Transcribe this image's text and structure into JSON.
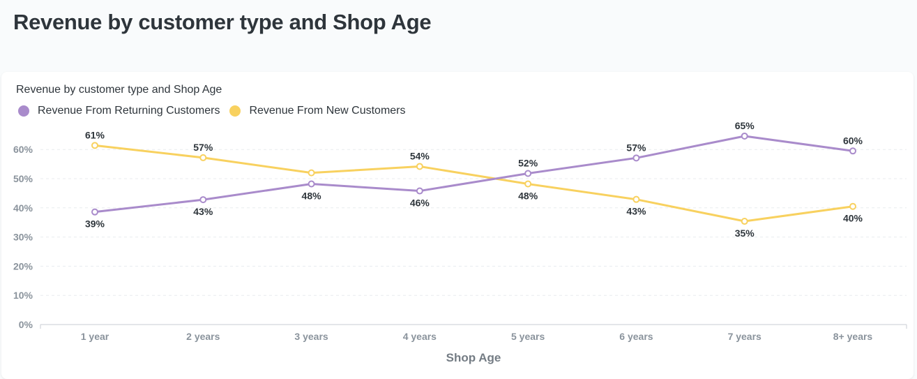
{
  "page": {
    "title": "Revenue by customer type and Shop Age"
  },
  "card": {
    "title": "Revenue by customer type and Shop Age"
  },
  "colors": {
    "returning": "#a98bcb",
    "new": "#f8d15f",
    "grid": "#e8ebee",
    "axis": "#c9ced3"
  },
  "chart_data": {
    "type": "line",
    "title": "Revenue by customer type and Shop Age",
    "xlabel": "Shop Age",
    "ylabel": "",
    "categories": [
      "1 year",
      "2 years",
      "3 years",
      "4 years",
      "5 years",
      "6 years",
      "7 years",
      "8+ years"
    ],
    "ylim": [
      0,
      60
    ],
    "yticks": [
      0,
      10,
      20,
      30,
      40,
      50,
      60
    ],
    "ytick_labels": [
      "0%",
      "10%",
      "20%",
      "30%",
      "40%",
      "50%",
      "60%"
    ],
    "grid": true,
    "legend_position": "top-left",
    "series": [
      {
        "name": "Revenue From Returning Customers",
        "color": "#a98bcb",
        "values": [
          38.6,
          42.8,
          48.2,
          45.8,
          51.8,
          57.1,
          64.6,
          59.5
        ],
        "labels": [
          "39%",
          "43%",
          "48%",
          "46%",
          "52%",
          "57%",
          "65%",
          "60%"
        ]
      },
      {
        "name": "Revenue From New Customers",
        "color": "#f8d15f",
        "values": [
          61.4,
          57.2,
          52.0,
          54.2,
          48.2,
          42.9,
          35.4,
          40.5
        ],
        "labels": [
          "61%",
          "57%",
          "",
          "54%",
          "48%",
          "43%",
          "35%",
          "40%"
        ]
      }
    ]
  }
}
